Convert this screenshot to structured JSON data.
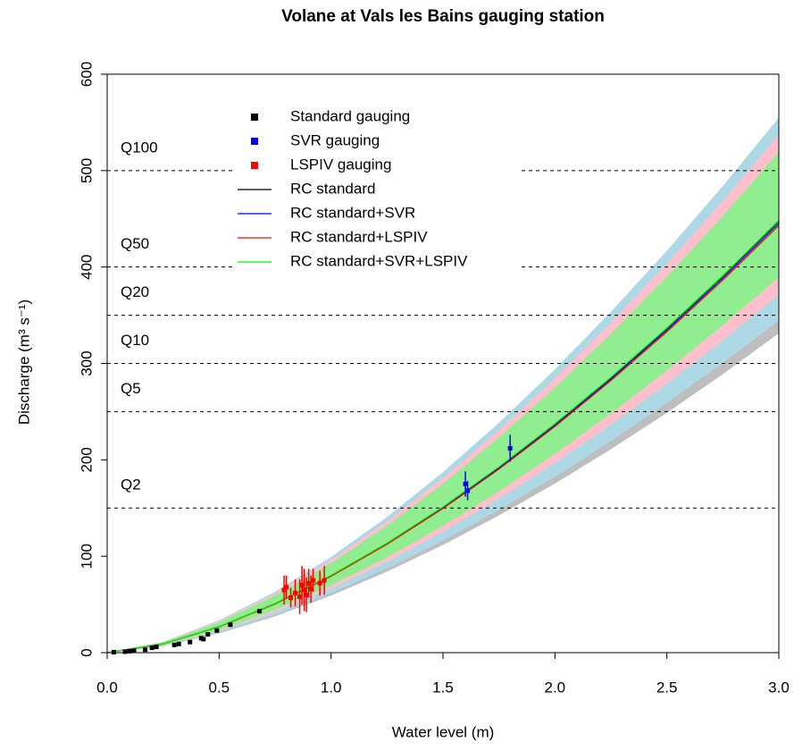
{
  "chart_data": {
    "type": "line",
    "title": "Volane at Vals les Bains gauging station",
    "xlabel": "Water level (m)",
    "ylabel": "Discharge (m³ s⁻¹)",
    "xlim": [
      0,
      3
    ],
    "ylim": [
      0,
      600
    ],
    "xticks": [
      {
        "value": 0,
        "label": "0.0"
      },
      {
        "value": 0.5,
        "label": "0.5"
      },
      {
        "value": 1,
        "label": "1.0"
      },
      {
        "value": 1.5,
        "label": "1.5"
      },
      {
        "value": 2,
        "label": "2.0"
      },
      {
        "value": 2.5,
        "label": "2.5"
      },
      {
        "value": 3,
        "label": "3.0"
      }
    ],
    "yticks": [
      0,
      100,
      200,
      300,
      400,
      500,
      600
    ],
    "annotations": [
      {
        "label": "Q100",
        "value": 500
      },
      {
        "label": "Q50",
        "value": 400
      },
      {
        "label": "Q20",
        "value": 350
      },
      {
        "label": "Q10",
        "value": 300
      },
      {
        "label": "Q5",
        "value": 250
      },
      {
        "label": "Q2",
        "value": 150
      }
    ],
    "x": [
      0,
      0.25,
      0.5,
      0.75,
      1,
      1.25,
      1.5,
      1.75,
      2,
      2.25,
      2.5,
      2.75,
      3
    ],
    "bands": [
      {
        "color": "#bebebe",
        "lower": [
          0,
          6.7,
          20,
          37.7,
          59.2,
          84,
          111.7,
          142.3,
          175.4,
          211,
          248.8,
          288.9,
          331.2
        ],
        "upper": [
          0,
          11.1,
          32.9,
          62.2,
          97.6,
          138.5,
          184.2,
          234.6,
          289.1,
          347.8,
          410.2,
          476.3,
          546
        ]
      },
      {
        "color": "#add8e6",
        "lower": [
          0,
          7,
          20.8,
          39.3,
          61.6,
          87.4,
          116.3,
          148.1,
          182.5,
          219.5,
          258.9,
          300.6,
          344.6
        ],
        "upper": [
          0,
          11.3,
          33.5,
          63.2,
          99.2,
          140.7,
          187.2,
          238.5,
          293.9,
          353.5,
          416.9,
          484.1,
          554.9
        ]
      },
      {
        "color": "#ffc0cb",
        "lower": [
          0,
          7.6,
          22.4,
          42.3,
          66.4,
          94.2,
          125.3,
          159.6,
          196.7,
          236.6,
          279,
          324,
          371.4
        ],
        "upper": [
          0,
          10.9,
          32.4,
          61.2,
          96,
          136.2,
          181.2,
          230.8,
          284.4,
          342.1,
          403.4,
          468.5,
          537
        ]
      },
      {
        "color": "#90ee90",
        "lower": [
          0,
          7.9,
          23.5,
          44.4,
          69.6,
          98.7,
          131.4,
          167.3,
          206.2,
          248,
          292.5,
          339.6,
          389.3
        ],
        "upper": [
          0,
          10.6,
          31.3,
          59.2,
          92.8,
          131.7,
          175.2,
          223.1,
          274.9,
          330.7,
          390,
          452.9,
          519.1
        ]
      }
    ],
    "curves": [
      {
        "name": "RC standard",
        "color": "#000000",
        "values": [
          0,
          9.1,
          27,
          51,
          80,
          113.5,
          151,
          192.3,
          237,
          285.1,
          336.2,
          390.4,
          447.5
        ]
      },
      {
        "name": "RC standard+SVR",
        "color": "#0000ff",
        "values": [
          0,
          9.1,
          26.9,
          50.8,
          79.6,
          112.9,
          150.2,
          191.3,
          235.8,
          283.7,
          334.5,
          388.4,
          445.3
        ]
      },
      {
        "name": "RC standard+LSPIV",
        "color": "#ff0000",
        "values": [
          0,
          9,
          26.8,
          50.5,
          79.2,
          112.4,
          149.5,
          190.4,
          234.6,
          282.2,
          332.8,
          386.5,
          443
        ]
      },
      {
        "name": "RC standard+SVR+LSPIV",
        "color": "#00ff00",
        "values": [
          0,
          9.1,
          27.1,
          51.1,
          80.2,
          113.7,
          151.3,
          192.7,
          237.5,
          285.7,
          336.9,
          391.2,
          448.4
        ]
      }
    ],
    "gaugings": [
      {
        "name": "Standard gauging",
        "color": "#000000",
        "x": [
          0.03,
          0.08,
          0.1,
          0.12,
          0.17,
          0.2,
          0.22,
          0.3,
          0.32,
          0.37,
          0.42,
          0.43,
          0.45,
          0.49,
          0.55,
          0.68
        ],
        "values": [
          0.5,
          1,
          1.5,
          2,
          3,
          5,
          6,
          8,
          9,
          11,
          15,
          14,
          19,
          23,
          29,
          43
        ]
      },
      {
        "name": "SVR gauging",
        "color": "#0000ff",
        "x": [
          1.6,
          1.61,
          1.8
        ],
        "values": [
          175,
          168,
          212
        ],
        "errors": [
          13,
          10,
          14
        ]
      },
      {
        "name": "LSPIV gauging",
        "color": "#ff0000",
        "x": [
          0.79,
          0.8,
          0.82,
          0.84,
          0.86,
          0.87,
          0.88,
          0.89,
          0.9,
          0.91,
          0.92,
          0.95,
          0.97
        ],
        "values": [
          65,
          68,
          57,
          62,
          58,
          70,
          65,
          60,
          72,
          66,
          75,
          72,
          75
        ],
        "errors": [
          15,
          12,
          10,
          14,
          18,
          20,
          22,
          18,
          15,
          14,
          12,
          13,
          15
        ]
      }
    ]
  }
}
